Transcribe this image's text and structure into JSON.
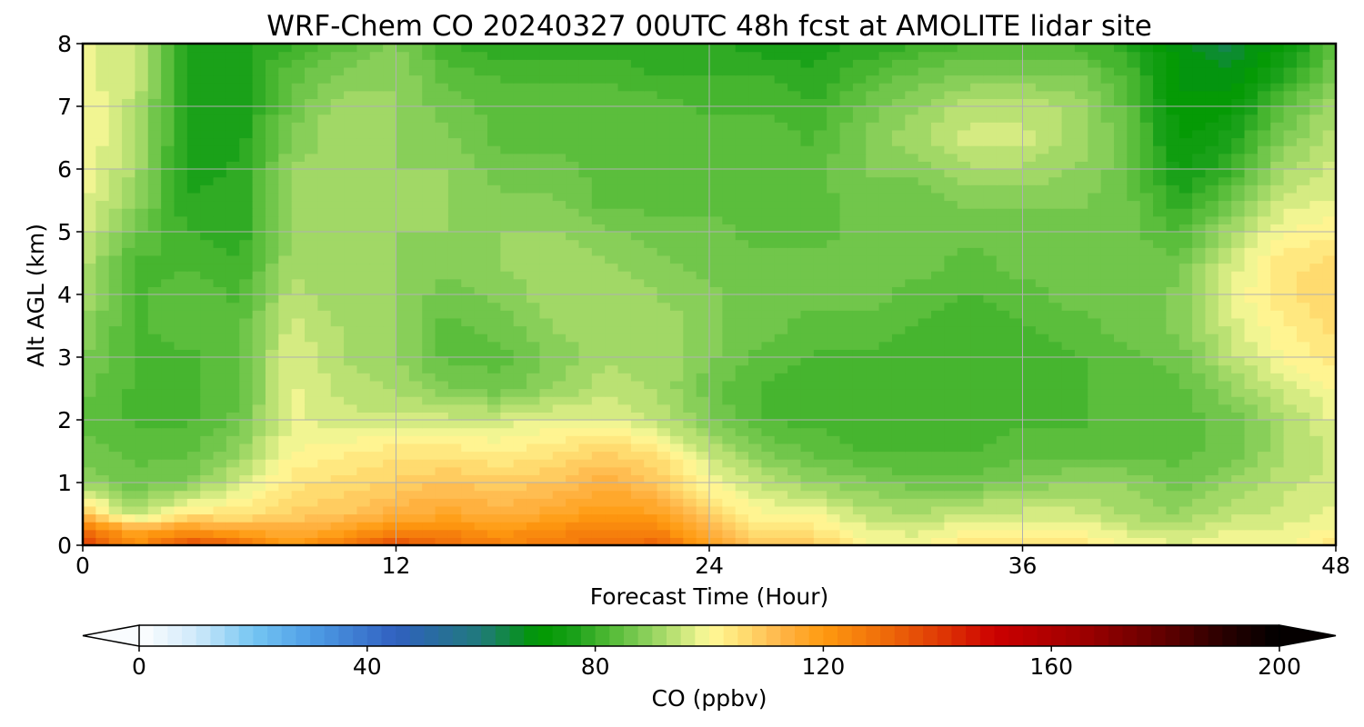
{
  "chart_data": {
    "type": "heatmap",
    "title": "WRF-Chem CO  20240327 00UTC 48h fcst at AMOLITE lidar site",
    "xlabel": "Forecast Time (Hour)",
    "ylabel": "Alt AGL (km)",
    "xlim": [
      0,
      48
    ],
    "ylim": [
      0,
      8
    ],
    "xticks": [
      0,
      12,
      24,
      36,
      48
    ],
    "yticks": [
      0,
      1,
      2,
      3,
      4,
      5,
      6,
      7,
      8
    ],
    "grid": true,
    "x": [
      0,
      2,
      4,
      6,
      8,
      10,
      12,
      14,
      16,
      18,
      20,
      22,
      24,
      26,
      28,
      30,
      32,
      34,
      36,
      38,
      40,
      42,
      44,
      46,
      48
    ],
    "y": [
      0,
      0.25,
      0.5,
      1,
      1.5,
      2,
      2.5,
      3,
      3.5,
      4,
      4.5,
      5,
      5.5,
      6,
      6.5,
      7,
      7.5,
      8
    ],
    "z": [
      [
        140,
        122,
        138,
        132,
        120,
        128,
        138,
        130,
        126,
        126,
        130,
        132,
        118,
        110,
        110,
        100,
        100,
        104,
        104,
        106,
        100,
        98,
        100,
        100,
        104
      ],
      [
        130,
        116,
        120,
        116,
        114,
        118,
        124,
        124,
        120,
        124,
        126,
        126,
        112,
        104,
        104,
        98,
        96,
        100,
        100,
        100,
        96,
        94,
        98,
        98,
        100
      ],
      [
        110,
        92,
        104,
        104,
        108,
        110,
        114,
        116,
        114,
        116,
        120,
        118,
        108,
        100,
        100,
        94,
        92,
        96,
        96,
        96,
        92,
        90,
        94,
        96,
        98
      ],
      [
        90,
        86,
        88,
        96,
        104,
        106,
        108,
        110,
        108,
        110,
        114,
        110,
        100,
        94,
        90,
        88,
        86,
        86,
        88,
        90,
        90,
        86,
        90,
        94,
        96
      ],
      [
        86,
        84,
        84,
        90,
        100,
        102,
        104,
        104,
        102,
        104,
        108,
        104,
        94,
        88,
        84,
        82,
        82,
        82,
        84,
        84,
        84,
        84,
        86,
        92,
        96
      ],
      [
        84,
        82,
        82,
        86,
        98,
        96,
        96,
        96,
        96,
        98,
        98,
        94,
        88,
        82,
        82,
        80,
        80,
        82,
        82,
        82,
        84,
        84,
        86,
        92,
        98
      ],
      [
        86,
        82,
        82,
        84,
        98,
        94,
        92,
        88,
        86,
        90,
        94,
        92,
        86,
        82,
        80,
        80,
        80,
        82,
        82,
        82,
        84,
        84,
        90,
        96,
        100
      ],
      [
        88,
        82,
        82,
        84,
        98,
        92,
        90,
        84,
        84,
        88,
        92,
        92,
        88,
        84,
        82,
        82,
        80,
        82,
        82,
        82,
        84,
        86,
        94,
        100,
        104
      ],
      [
        90,
        82,
        84,
        84,
        96,
        92,
        90,
        84,
        86,
        90,
        92,
        92,
        88,
        86,
        84,
        84,
        82,
        82,
        82,
        84,
        86,
        88,
        96,
        102,
        106
      ],
      [
        92,
        82,
        84,
        82,
        94,
        90,
        90,
        86,
        88,
        92,
        92,
        90,
        88,
        86,
        86,
        86,
        84,
        82,
        84,
        86,
        86,
        88,
        98,
        104,
        108
      ],
      [
        94,
        82,
        82,
        80,
        92,
        90,
        90,
        88,
        90,
        92,
        90,
        88,
        86,
        86,
        86,
        86,
        86,
        84,
        86,
        86,
        86,
        86,
        96,
        104,
        106
      ],
      [
        96,
        86,
        80,
        78,
        90,
        90,
        90,
        90,
        90,
        90,
        88,
        86,
        86,
        84,
        84,
        86,
        86,
        86,
        86,
        86,
        86,
        82,
        92,
        100,
        102
      ],
      [
        98,
        90,
        78,
        78,
        90,
        90,
        90,
        90,
        88,
        88,
        84,
        84,
        84,
        84,
        84,
        86,
        86,
        88,
        88,
        88,
        86,
        78,
        86,
        96,
        98
      ],
      [
        100,
        92,
        76,
        78,
        90,
        92,
        90,
        90,
        86,
        86,
        84,
        84,
        84,
        84,
        84,
        88,
        88,
        92,
        92,
        90,
        86,
        74,
        80,
        92,
        96
      ],
      [
        100,
        94,
        76,
        76,
        88,
        92,
        90,
        88,
        84,
        84,
        84,
        84,
        84,
        84,
        82,
        88,
        92,
        96,
        96,
        92,
        86,
        72,
        76,
        88,
        94
      ],
      [
        100,
        94,
        76,
        76,
        86,
        92,
        90,
        86,
        84,
        84,
        84,
        84,
        82,
        82,
        80,
        86,
        90,
        94,
        94,
        92,
        84,
        70,
        72,
        84,
        92
      ],
      [
        98,
        96,
        76,
        76,
        84,
        88,
        90,
        84,
        82,
        82,
        82,
        80,
        80,
        80,
        78,
        82,
        86,
        88,
        88,
        88,
        82,
        70,
        68,
        78,
        88
      ],
      [
        98,
        96,
        76,
        76,
        80,
        84,
        88,
        80,
        78,
        78,
        78,
        78,
        78,
        76,
        76,
        78,
        80,
        82,
        82,
        82,
        78,
        68,
        64,
        72,
        84
      ]
    ],
    "colorbar": {
      "label": "CO  (ppbv)",
      "min": 0,
      "max": 200,
      "step": 2.5,
      "ticks": [
        0,
        40,
        80,
        120,
        160,
        200
      ],
      "extend": "both",
      "colormap": [
        [
          0,
          "#ffffff"
        ],
        [
          10,
          "#cfe9fa"
        ],
        [
          20,
          "#75c6f2"
        ],
        [
          30,
          "#4f9ee6"
        ],
        [
          45,
          "#3060c0"
        ],
        [
          60,
          "#207a7a"
        ],
        [
          70,
          "#009900"
        ],
        [
          76,
          "#18a018"
        ],
        [
          82,
          "#4cb832"
        ],
        [
          88,
          "#80cc55"
        ],
        [
          95,
          "#c7e67a"
        ],
        [
          100,
          "#fffa9a"
        ],
        [
          106,
          "#ffdd70"
        ],
        [
          112,
          "#ffb84c"
        ],
        [
          120,
          "#ff9a10"
        ],
        [
          130,
          "#f06f0a"
        ],
        [
          140,
          "#e03c05"
        ],
        [
          150,
          "#cc0000"
        ],
        [
          165,
          "#a00000"
        ],
        [
          180,
          "#600000"
        ],
        [
          190,
          "#2a0000"
        ],
        [
          200,
          "#000000"
        ]
      ]
    }
  }
}
